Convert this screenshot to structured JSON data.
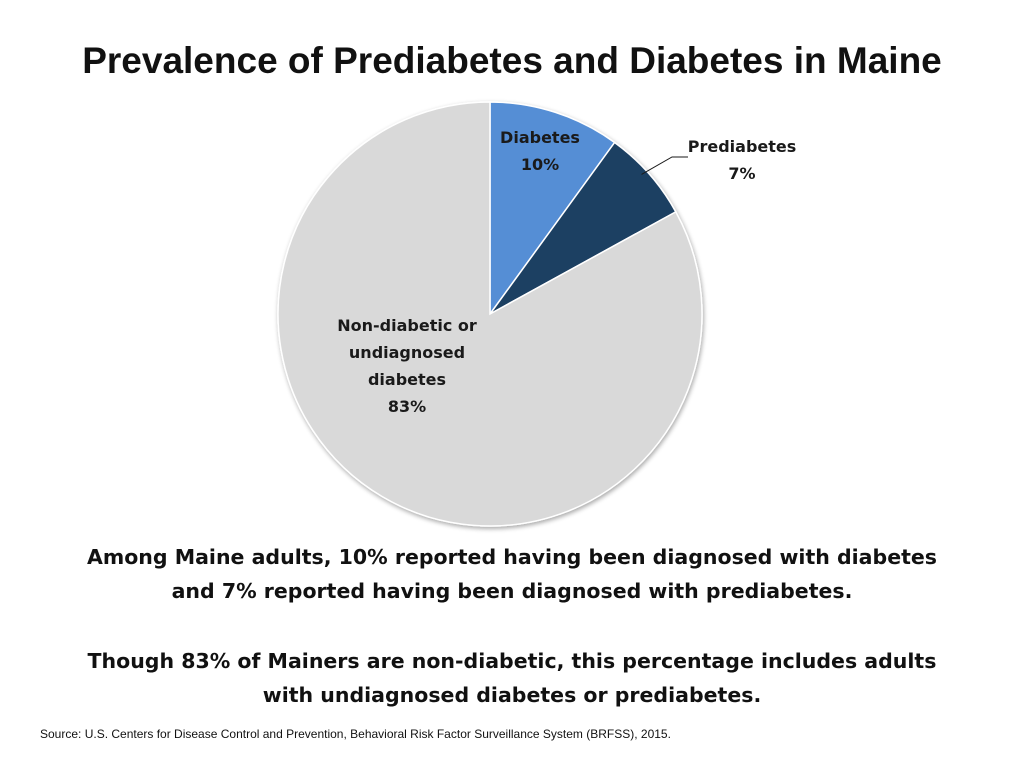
{
  "title": "Prevalence of Prediabetes and Diabetes in Maine",
  "chart_data": {
    "type": "pie",
    "title": "Prevalence of Prediabetes and Diabetes in Maine",
    "slices": [
      {
        "name": "Diabetes",
        "value": 10,
        "label": "10%",
        "color": "#558ED5"
      },
      {
        "name": "Prediabetes",
        "value": 7,
        "label": "7%",
        "color": "#1F3F62"
      },
      {
        "name": "Non-diabetic or undiagnosed diabetes",
        "label_lines": [
          "Non-diabetic or",
          "undiagnosed",
          "diabetes"
        ],
        "value": 83,
        "label": "83%",
        "color": "#D9D9D9"
      }
    ],
    "start_angle_deg": 0,
    "direction": "clockwise",
    "legend": "none"
  },
  "captions": {
    "first_line1": "Among Maine adults, 10% reported having been diagnosed with diabetes",
    "first_line2": "and 7% reported having been diagnosed with prediabetes.",
    "second_line1": "Though 83% of Mainers are non-diabetic, this percentage includes adults",
    "second_line2": "with undiagnosed diabetes or prediabetes."
  },
  "source": "Source: U.S. Centers for Disease Control and Prevention, Behavioral Risk Factor Surveillance System (BRFSS), 2015."
}
